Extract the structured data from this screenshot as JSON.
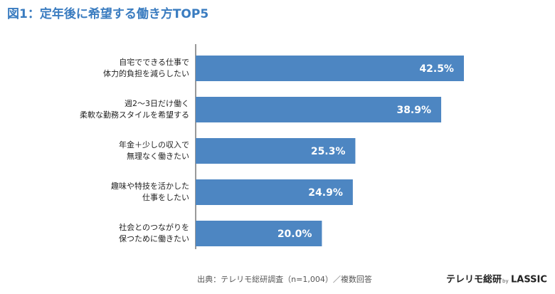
{
  "chart_data": {
    "type": "bar",
    "orientation": "horizontal",
    "title": "図1：定年後に希望する働き方TOP5",
    "categories": [
      [
        "自宅でできる仕事で",
        "体力的負担を減らしたい"
      ],
      [
        "週2〜3日だけ働く",
        "柔軟な勤務スタイルを希望する"
      ],
      [
        "年金＋少しの収入で",
        "無理なく働きたい"
      ],
      [
        "趣味や特技を活かした",
        "仕事をしたい"
      ],
      [
        "社会とのつながりを",
        "保つために働きたい"
      ]
    ],
    "values": [
      42.5,
      38.9,
      25.3,
      24.9,
      20.0
    ],
    "value_labels": [
      "42.5%",
      "38.9%",
      "25.3%",
      "24.9%",
      "20.0%"
    ],
    "color": "#4d86c2",
    "source": "出典：テレリモ総研調査（n=1,004）／複数回答",
    "logo": {
      "name": "テレリモ総研",
      "by": "by",
      "company": "LASSIC"
    }
  }
}
